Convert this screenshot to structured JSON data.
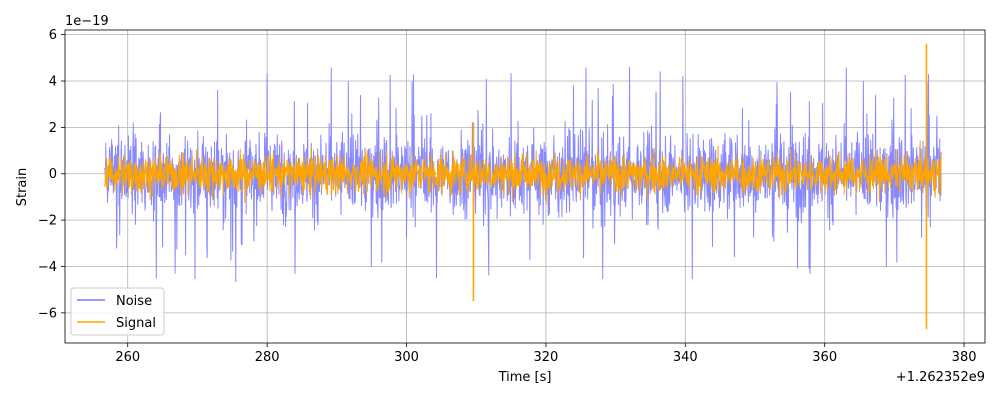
{
  "chart_data": {
    "type": "line",
    "xlabel": "Time [s]",
    "ylabel": "Strain",
    "x_offset_label": "+1.262352e9",
    "y_scale_label": "1e−19",
    "xlim": [
      251,
      383
    ],
    "ylim": [
      -7.3,
      6.2
    ],
    "x_ticks": [
      260,
      280,
      300,
      320,
      340,
      360,
      380
    ],
    "y_ticks": [
      -6,
      -4,
      -2,
      0,
      2,
      4,
      6
    ],
    "x_tick_labels": [
      "260",
      "280",
      "300",
      "320",
      "340",
      "360",
      "380"
    ],
    "y_tick_labels": [
      "−6",
      "−4",
      "−2",
      "0",
      "2",
      "4",
      "6"
    ],
    "grid": true,
    "legend_position": "lower-left",
    "series": [
      {
        "name": "Noise",
        "color": "#7b7bff",
        "x_range": [
          256.7,
          376.7
        ],
        "typical_envelope": [
          -2.2,
          2.2
        ],
        "peak_range": [
          -4.8,
          4.7
        ],
        "line_width_note": "dense"
      },
      {
        "name": "Signal",
        "color": "#ffa500",
        "x_range": [
          256.7,
          376.7
        ],
        "typical_envelope": [
          -1.2,
          1.3
        ],
        "spikes": [
          {
            "x": 309.6,
            "y_min": -5.5,
            "y_max": 2.2
          },
          {
            "x": 374.6,
            "y_min": -6.7,
            "y_max": 5.6
          }
        ]
      }
    ]
  }
}
